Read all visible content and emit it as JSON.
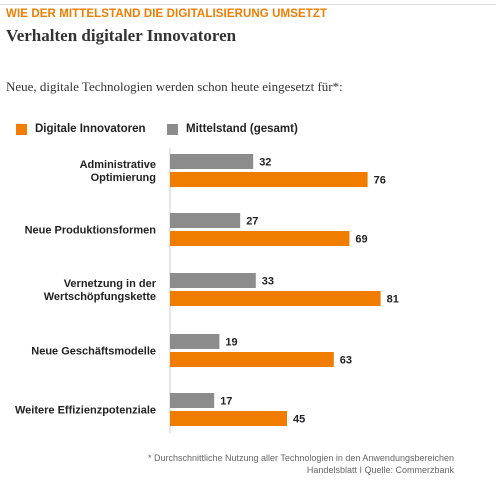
{
  "header": {
    "kicker": "WIE DER MITTELSTAND DIE DIGITALISIERUNG UMSETZT",
    "title": "Verhalten digitaler Innovatoren",
    "subtitle": "Neue, digitale Technologien werden schon heute eingesetzt für*:"
  },
  "colors": {
    "accent": "#f07c00",
    "series_innovatoren": "#f07c00",
    "series_mittelstand": "#8c8c8c"
  },
  "legend": {
    "item1": "Digitale Innovatoren",
    "item2": "Mittelstand (gesamt)"
  },
  "chart_data": {
    "type": "bar",
    "orientation": "horizontal",
    "categories": [
      [
        "Administrative",
        "Optimierung"
      ],
      [
        "Neue Produktionsformen"
      ],
      [
        "Vernetzung in der",
        "Wertschöpfungskette"
      ],
      [
        "Neue Geschäftsmodelle"
      ],
      [
        "Weitere Effizienzpotenziale"
      ]
    ],
    "series": [
      {
        "name": "Mittelstand (gesamt)",
        "values": [
          32,
          27,
          33,
          19,
          17
        ]
      },
      {
        "name": "Digitale Innovatoren",
        "values": [
          76,
          69,
          81,
          63,
          45
        ]
      }
    ],
    "xlim": [
      0,
      100
    ],
    "grid": false,
    "legend_position": "top-left"
  },
  "footer": {
    "note": "* Durchschnittliche Nutzung aller Technologien in den Anwendungsbereichen",
    "source": "Handelsblatt I Quelle: Commerzbank"
  }
}
